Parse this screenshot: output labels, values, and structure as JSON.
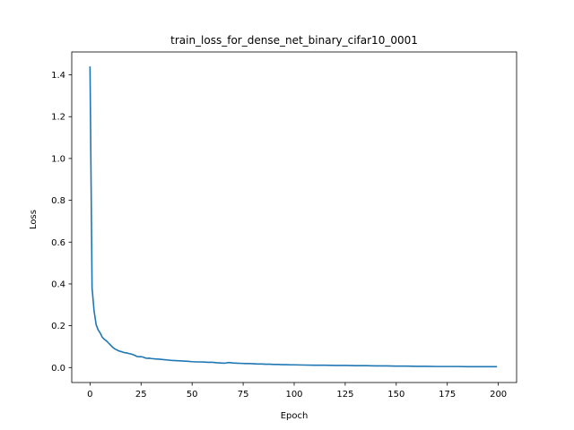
{
  "chart_data": {
    "type": "line",
    "title": "train_loss_for_dense_net_binary_cifar10_0001",
    "xlabel": "Epoch",
    "ylabel": "Loss",
    "xlim": [
      -8.95,
      208.95
    ],
    "ylim": [
      -0.0716,
      1.5095
    ],
    "xticks": [
      0,
      25,
      50,
      75,
      100,
      125,
      150,
      175,
      200
    ],
    "xtick_labels": [
      "0",
      "25",
      "50",
      "75",
      "100",
      "125",
      "150",
      "175",
      "200"
    ],
    "yticks": [
      0.0,
      0.2,
      0.4,
      0.6,
      0.8,
      1.0,
      1.2,
      1.4
    ],
    "ytick_labels": [
      "0.0",
      "0.2",
      "0.4",
      "0.6",
      "0.8",
      "1.0",
      "1.2",
      "1.4"
    ],
    "grid": false,
    "series": [
      {
        "color": "#1f77b4",
        "x": [
          0,
          1,
          2,
          3,
          4,
          5,
          6,
          7,
          8,
          9,
          10,
          11,
          12,
          13,
          14,
          15,
          16,
          17,
          18,
          19,
          20,
          21,
          22,
          23,
          24,
          25,
          26,
          27,
          28,
          29,
          30,
          32,
          34,
          36,
          38,
          40,
          42,
          44,
          46,
          48,
          50,
          52,
          54,
          56,
          58,
          60,
          62,
          64,
          66,
          68,
          70,
          72,
          74,
          76,
          78,
          80,
          82,
          84,
          86,
          88,
          90,
          92,
          94,
          96,
          98,
          100,
          105,
          110,
          115,
          120,
          125,
          130,
          135,
          140,
          145,
          150,
          155,
          160,
          165,
          170,
          175,
          180,
          185,
          190,
          195,
          199
        ],
        "y": [
          1.437,
          0.38,
          0.27,
          0.205,
          0.18,
          0.165,
          0.145,
          0.135,
          0.128,
          0.118,
          0.108,
          0.098,
          0.09,
          0.085,
          0.08,
          0.077,
          0.074,
          0.071,
          0.07,
          0.067,
          0.065,
          0.062,
          0.058,
          0.053,
          0.052,
          0.052,
          0.05,
          0.046,
          0.044,
          0.045,
          0.043,
          0.041,
          0.04,
          0.038,
          0.036,
          0.034,
          0.033,
          0.032,
          0.031,
          0.03,
          0.028,
          0.027,
          0.027,
          0.026,
          0.025,
          0.025,
          0.023,
          0.022,
          0.021,
          0.024,
          0.022,
          0.021,
          0.02,
          0.019,
          0.019,
          0.018,
          0.017,
          0.017,
          0.016,
          0.016,
          0.015,
          0.015,
          0.014,
          0.014,
          0.013,
          0.013,
          0.012,
          0.011,
          0.011,
          0.01,
          0.01,
          0.009,
          0.009,
          0.008,
          0.008,
          0.007,
          0.007,
          0.006,
          0.006,
          0.005,
          0.005,
          0.005,
          0.004,
          0.004,
          0.004,
          0.004
        ]
      }
    ]
  }
}
